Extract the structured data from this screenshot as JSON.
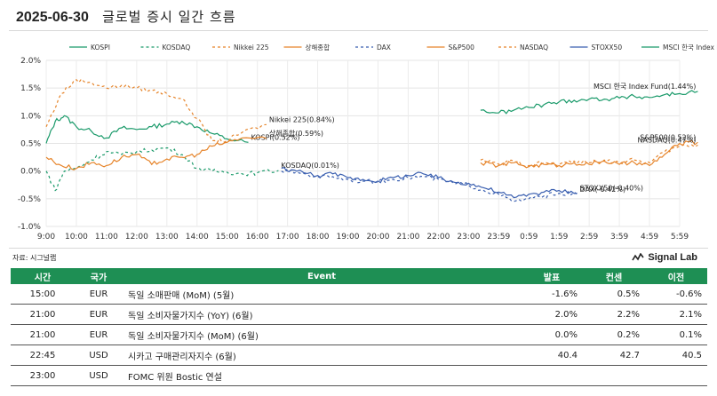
{
  "header": {
    "date": "2025-06-30",
    "title": "글로벌 증시 일간 흐름"
  },
  "footer": {
    "source": "자료: 시그널랩",
    "brand": "Signal Lab"
  },
  "chart_data": {
    "type": "line",
    "x_ticks": [
      "9:00",
      "10:00",
      "11:00",
      "12:00",
      "13:00",
      "14:00",
      "15:00",
      "16:00",
      "17:00",
      "18:00",
      "19:00",
      "20:00",
      "21:00",
      "22:00",
      "23:00",
      "23:59",
      "0:59",
      "1:59",
      "2:59",
      "3:59",
      "4:59",
      "5:59"
    ],
    "ylim": [
      -1.0,
      2.0
    ],
    "y_ticks": [
      "-1.0%",
      "-0.5%",
      "0.0%",
      "0.5%",
      "1.0%",
      "1.5%",
      "2.0%"
    ],
    "grid": true,
    "legend_position": "top",
    "series": [
      {
        "name": "KOSPI",
        "color": "#1a9a6a",
        "dash": "",
        "range": [
          0,
          6.7
        ],
        "points": [
          [
            0,
            0.5
          ],
          [
            0.3,
            0.9
          ],
          [
            0.6,
            1.0
          ],
          [
            1,
            0.8
          ],
          [
            1.5,
            0.72
          ],
          [
            2,
            0.6
          ],
          [
            2.5,
            0.78
          ],
          [
            3,
            0.75
          ],
          [
            3.5,
            0.8
          ],
          [
            4,
            0.85
          ],
          [
            4.5,
            0.9
          ],
          [
            5,
            0.8
          ],
          [
            5.5,
            0.68
          ],
          [
            6,
            0.58
          ],
          [
            6.7,
            0.52
          ]
        ],
        "end_label": "KOSPI(0.52%)"
      },
      {
        "name": "KOSDAQ",
        "color": "#1a9a6a",
        "dash": "3,3",
        "range": [
          0,
          7.7
        ],
        "points": [
          [
            0,
            0.0
          ],
          [
            0.3,
            -0.35
          ],
          [
            0.6,
            0.0
          ],
          [
            1,
            0.05
          ],
          [
            1.5,
            0.2
          ],
          [
            2,
            0.35
          ],
          [
            2.5,
            0.3
          ],
          [
            3,
            0.35
          ],
          [
            3.5,
            0.38
          ],
          [
            4,
            0.42
          ],
          [
            4.5,
            0.3
          ],
          [
            5,
            0.05
          ],
          [
            5.5,
            0.0
          ],
          [
            6,
            -0.02
          ],
          [
            6.5,
            -0.05
          ],
          [
            7,
            -0.03
          ],
          [
            7.7,
            0.01
          ]
        ],
        "end_label": "KOSDAQ(0.01%)"
      },
      {
        "name": "Nikkei 225",
        "color": "#e6842a",
        "dash": "3,3",
        "range": [
          0,
          7.3
        ],
        "points": [
          [
            0,
            0.8
          ],
          [
            0.5,
            1.4
          ],
          [
            1,
            1.65
          ],
          [
            1.5,
            1.6
          ],
          [
            2,
            1.5
          ],
          [
            2.5,
            1.55
          ],
          [
            3,
            1.5
          ],
          [
            3.5,
            1.45
          ],
          [
            4,
            1.4
          ],
          [
            4.5,
            1.3
          ],
          [
            5,
            0.95
          ],
          [
            5.5,
            0.55
          ],
          [
            6,
            0.55
          ],
          [
            6.5,
            0.7
          ],
          [
            7.3,
            0.84
          ]
        ],
        "end_label": "Nikkei 225(0.84%)"
      },
      {
        "name": "상해종합",
        "color": "#e6842a",
        "dash": "",
        "range": [
          0,
          7.3
        ],
        "points": [
          [
            0,
            0.25
          ],
          [
            0.5,
            0.1
          ],
          [
            1,
            0.05
          ],
          [
            1.5,
            0.15
          ],
          [
            2,
            0.1
          ],
          [
            2.5,
            0.25
          ],
          [
            3,
            0.3
          ],
          [
            3.5,
            0.12
          ],
          [
            4,
            0.22
          ],
          [
            4.5,
            0.25
          ],
          [
            5,
            0.3
          ],
          [
            5.5,
            0.45
          ],
          [
            6,
            0.52
          ],
          [
            6.5,
            0.6
          ],
          [
            7.3,
            0.59
          ]
        ],
        "end_label": "상해종합(0.59%)"
      },
      {
        "name": "DAX",
        "color": "#3a5fb0",
        "dash": "3,3",
        "range": [
          7.8,
          17.6
        ],
        "points": [
          [
            7.8,
            0.0
          ],
          [
            8.3,
            -0.02
          ],
          [
            9,
            -0.1
          ],
          [
            9.5,
            -0.1
          ],
          [
            10,
            -0.15
          ],
          [
            10.5,
            -0.18
          ],
          [
            11,
            -0.2
          ],
          [
            11.5,
            -0.15
          ],
          [
            12,
            -0.12
          ],
          [
            12.5,
            -0.1
          ],
          [
            13,
            -0.15
          ],
          [
            13.5,
            -0.22
          ],
          [
            14,
            -0.25
          ],
          [
            14.5,
            -0.35
          ],
          [
            15,
            -0.42
          ],
          [
            15.5,
            -0.55
          ],
          [
            16,
            -0.5
          ],
          [
            16.5,
            -0.45
          ],
          [
            17,
            -0.4
          ],
          [
            17.6,
            -0.42
          ]
        ],
        "end_label": "DAX(-0.42%)"
      },
      {
        "name": "S&P500",
        "color": "#e6842a",
        "dash": "",
        "range": [
          14.4,
          21.6
        ],
        "points": [
          [
            14.4,
            0.15
          ],
          [
            15,
            0.1
          ],
          [
            15.5,
            0.15
          ],
          [
            16,
            0.08
          ],
          [
            16.5,
            0.12
          ],
          [
            17,
            0.1
          ],
          [
            17.5,
            0.15
          ],
          [
            18,
            0.12
          ],
          [
            18.5,
            0.18
          ],
          [
            19,
            0.12
          ],
          [
            19.5,
            0.15
          ],
          [
            20,
            0.1
          ],
          [
            20.5,
            0.3
          ],
          [
            21,
            0.5
          ],
          [
            21.6,
            0.52
          ]
        ],
        "end_label": "S&P500(0.52%)"
      },
      {
        "name": "NASDAQ",
        "color": "#e6842a",
        "dash": "3,3",
        "range": [
          14.4,
          21.6
        ],
        "points": [
          [
            14.4,
            0.2
          ],
          [
            15,
            0.12
          ],
          [
            15.5,
            0.18
          ],
          [
            16,
            0.1
          ],
          [
            16.5,
            0.15
          ],
          [
            17,
            0.12
          ],
          [
            17.5,
            0.18
          ],
          [
            18,
            0.15
          ],
          [
            18.5,
            0.2
          ],
          [
            19,
            0.15
          ],
          [
            19.5,
            0.2
          ],
          [
            20,
            0.15
          ],
          [
            20.5,
            0.35
          ],
          [
            21,
            0.45
          ],
          [
            21.6,
            0.47
          ]
        ],
        "end_label": "NASDAQ(0.47%)"
      },
      {
        "name": "STOXX50",
        "color": "#3a5fb0",
        "dash": "",
        "range": [
          7.8,
          17.6
        ],
        "points": [
          [
            7.8,
            0.05
          ],
          [
            8.3,
            0.0
          ],
          [
            9,
            -0.08
          ],
          [
            9.5,
            -0.05
          ],
          [
            10,
            -0.12
          ],
          [
            10.5,
            -0.15
          ],
          [
            11,
            -0.18
          ],
          [
            11.5,
            -0.12
          ],
          [
            12,
            -0.08
          ],
          [
            12.5,
            -0.05
          ],
          [
            13,
            -0.12
          ],
          [
            13.5,
            -0.2
          ],
          [
            14,
            -0.22
          ],
          [
            14.5,
            -0.3
          ],
          [
            15,
            -0.38
          ],
          [
            15.5,
            -0.48
          ],
          [
            16,
            -0.42
          ],
          [
            16.5,
            -0.38
          ],
          [
            17,
            -0.35
          ],
          [
            17.6,
            -0.4
          ]
        ],
        "end_label": "STOXX50(-0.40%)"
      },
      {
        "name": "MSCI 한국 Index Fund",
        "color": "#1a9a6a",
        "dash": "",
        "range": [
          14.4,
          21.6
        ],
        "points": [
          [
            14.4,
            1.1
          ],
          [
            15,
            1.05
          ],
          [
            15.5,
            1.1
          ],
          [
            16,
            1.15
          ],
          [
            16.5,
            1.2
          ],
          [
            17,
            1.25
          ],
          [
            17.5,
            1.28
          ],
          [
            18,
            1.3
          ],
          [
            18.5,
            1.3
          ],
          [
            19,
            1.32
          ],
          [
            19.5,
            1.35
          ],
          [
            20,
            1.33
          ],
          [
            20.5,
            1.38
          ],
          [
            21,
            1.4
          ],
          [
            21.6,
            1.44
          ]
        ],
        "end_label": "MSCI 한국 Index Fund(1.44%)"
      }
    ]
  },
  "table": {
    "headers": {
      "time": "시간",
      "country": "국가",
      "event": "Event",
      "actual": "발표",
      "forecast": "컨센",
      "previous": "이전"
    },
    "rows": [
      {
        "time": "15:00",
        "country": "EUR",
        "event": "독일 소매판매 (MoM) (5월)",
        "actual": "-1.6%",
        "forecast": "0.5%",
        "previous": "-0.6%"
      },
      {
        "time": "21:00",
        "country": "EUR",
        "event": "독일 소비자물가지수 (YoY) (6월)",
        "actual": "2.0%",
        "forecast": "2.2%",
        "previous": "2.1%"
      },
      {
        "time": "21:00",
        "country": "EUR",
        "event": "독일 소비자물가지수 (MoM) (6월)",
        "actual": "0.0%",
        "forecast": "0.2%",
        "previous": "0.1%"
      },
      {
        "time": "22:45",
        "country": "USD",
        "event": "시카고 구매관리자지수 (6월)",
        "actual": "40.4",
        "forecast": "42.7",
        "previous": "40.5"
      },
      {
        "time": "23:00",
        "country": "USD",
        "event": "FOMC 위원 Bostic 연설",
        "actual": "",
        "forecast": "",
        "previous": ""
      }
    ]
  }
}
